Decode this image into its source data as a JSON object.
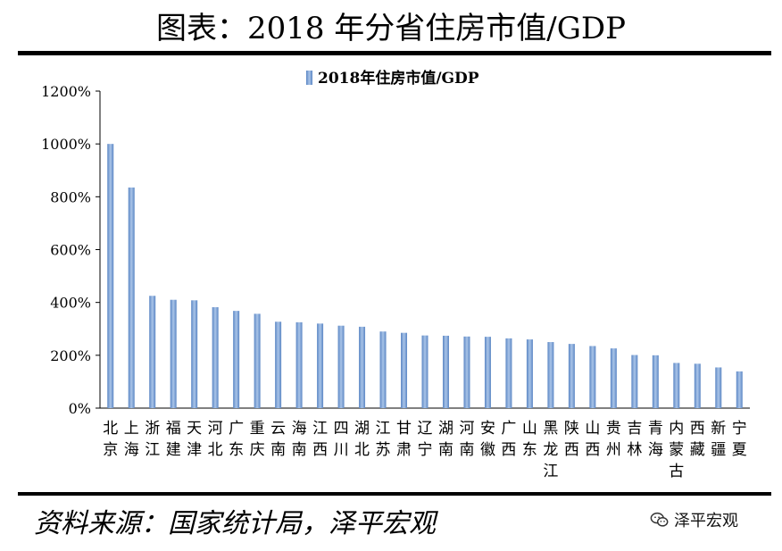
{
  "page": {
    "title": "图表：2018 年分省住房市值/GDP",
    "source": "资料来源：国家统计局，泽平宏观",
    "watermark": "泽平宏观",
    "watermark_icon": "wechat-icon"
  },
  "chart_data": {
    "type": "bar",
    "title": "",
    "legend_label": "2018年住房市值/GDP",
    "legend_position": "top-center",
    "xlabel": "",
    "ylabel": "",
    "ylim": [
      0,
      1200
    ],
    "yticks": [
      "0%",
      "200%",
      "400%",
      "600%",
      "800%",
      "1000%",
      "1200%"
    ],
    "grid": false,
    "bar_color": "#7DA3D4",
    "categories": [
      "北京",
      "上海",
      "浙江",
      "福建",
      "天津",
      "河北",
      "广东",
      "重庆",
      "云南",
      "海南",
      "江西",
      "四川",
      "湖北",
      "江苏",
      "甘肃",
      "辽宁",
      "湖南",
      "河南",
      "安徽",
      "广西",
      "山东",
      "黑龙江",
      "陕西",
      "山西",
      "贵州",
      "吉林",
      "青海",
      "内蒙古",
      "西藏",
      "新疆",
      "宁夏"
    ],
    "values": [
      1000,
      835,
      425,
      410,
      408,
      382,
      368,
      357,
      327,
      325,
      320,
      312,
      308,
      290,
      285,
      275,
      274,
      271,
      270,
      264,
      260,
      250,
      243,
      235,
      226,
      201,
      200,
      171,
      168,
      154,
      139
    ]
  }
}
